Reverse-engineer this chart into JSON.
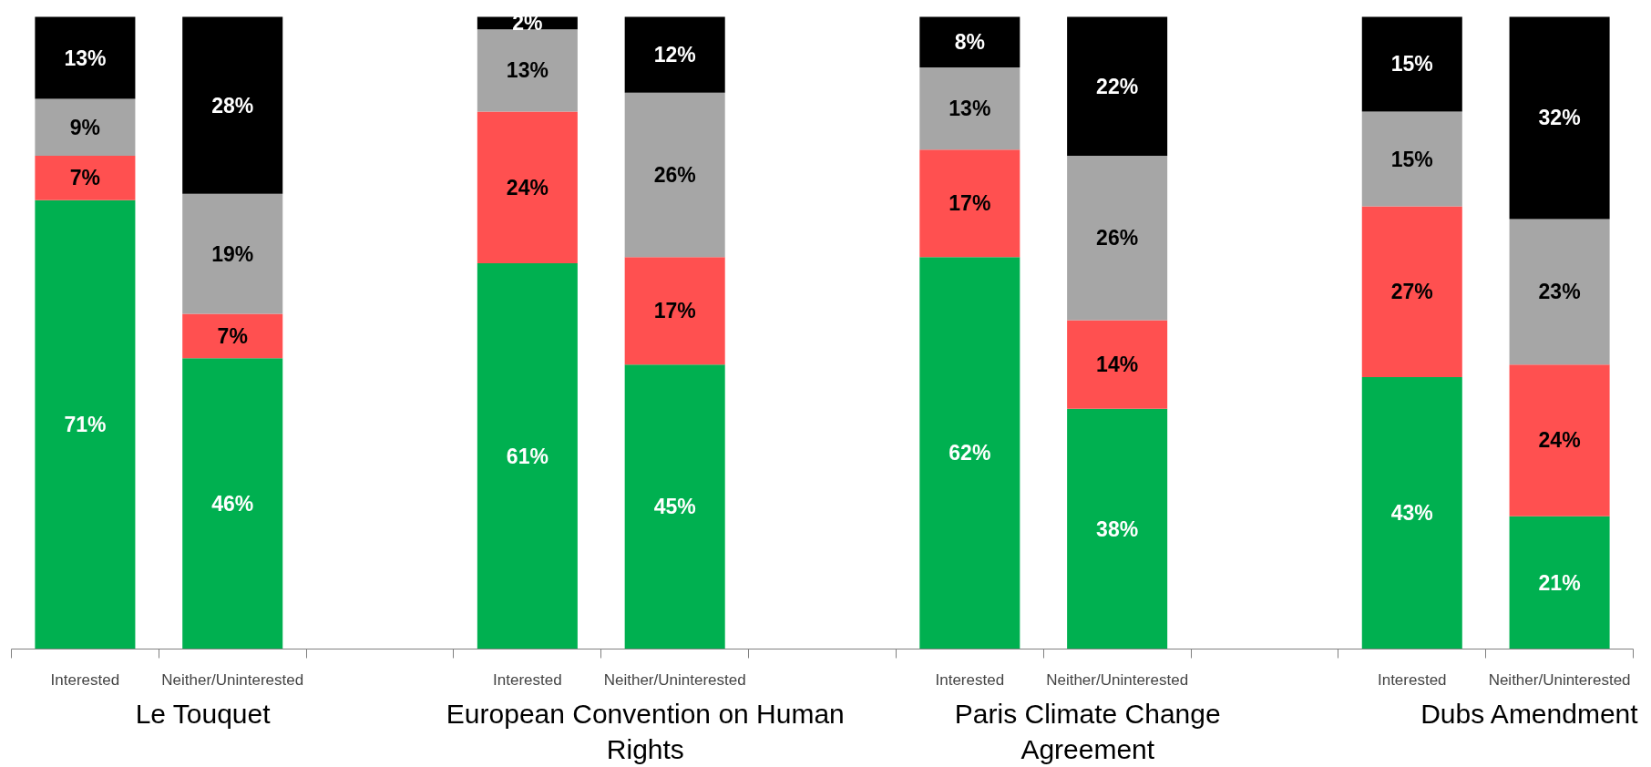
{
  "chart_data": {
    "type": "bar",
    "stacked": true,
    "grid": false,
    "tick_labels": "x",
    "categories": [
      "Interested",
      "Neither/Uninterested",
      null,
      "Interested",
      "Neither/Uninterested",
      null,
      "Interested",
      "Neither/Uninterested",
      null,
      "Interested",
      "Neither/Uninterested"
    ],
    "series": [
      {
        "color": "#00b050",
        "values": [
          71,
          46,
          null,
          61,
          45,
          null,
          62,
          38,
          null,
          43,
          21
        ],
        "value_labels": [
          "71%",
          "46%",
          null,
          "61%",
          "45%",
          null,
          "62%",
          "38%",
          null,
          "43%",
          "21%"
        ]
      },
      {
        "color": "#ff5050",
        "values": [
          7,
          7,
          null,
          24,
          17,
          null,
          17,
          14,
          null,
          27,
          24
        ],
        "value_labels": [
          "7%",
          "7%",
          null,
          "24%",
          "17%",
          null,
          "17%",
          "14%",
          null,
          "27%",
          "24%"
        ]
      },
      {
        "color": "#a6a6a6",
        "values": [
          9,
          19,
          null,
          13,
          26,
          null,
          13,
          26,
          null,
          15,
          23
        ],
        "value_labels": [
          "9%",
          "19%",
          null,
          "13%",
          "26%",
          null,
          "13%",
          "26%",
          null,
          "15%",
          "23%"
        ]
      },
      {
        "color": "#000000",
        "values": [
          13,
          28,
          null,
          2,
          12,
          null,
          8,
          22,
          null,
          15,
          32
        ],
        "value_labels": [
          "13%",
          "28%",
          null,
          "2%",
          "12%",
          null,
          "8%",
          "22%",
          null,
          "15%",
          "32%"
        ]
      }
    ],
    "annotations": [
      "Le Touquet",
      "European Convention on Human Rights",
      "Paris Climate Change Agreement",
      "Dubs Amendment"
    ]
  }
}
